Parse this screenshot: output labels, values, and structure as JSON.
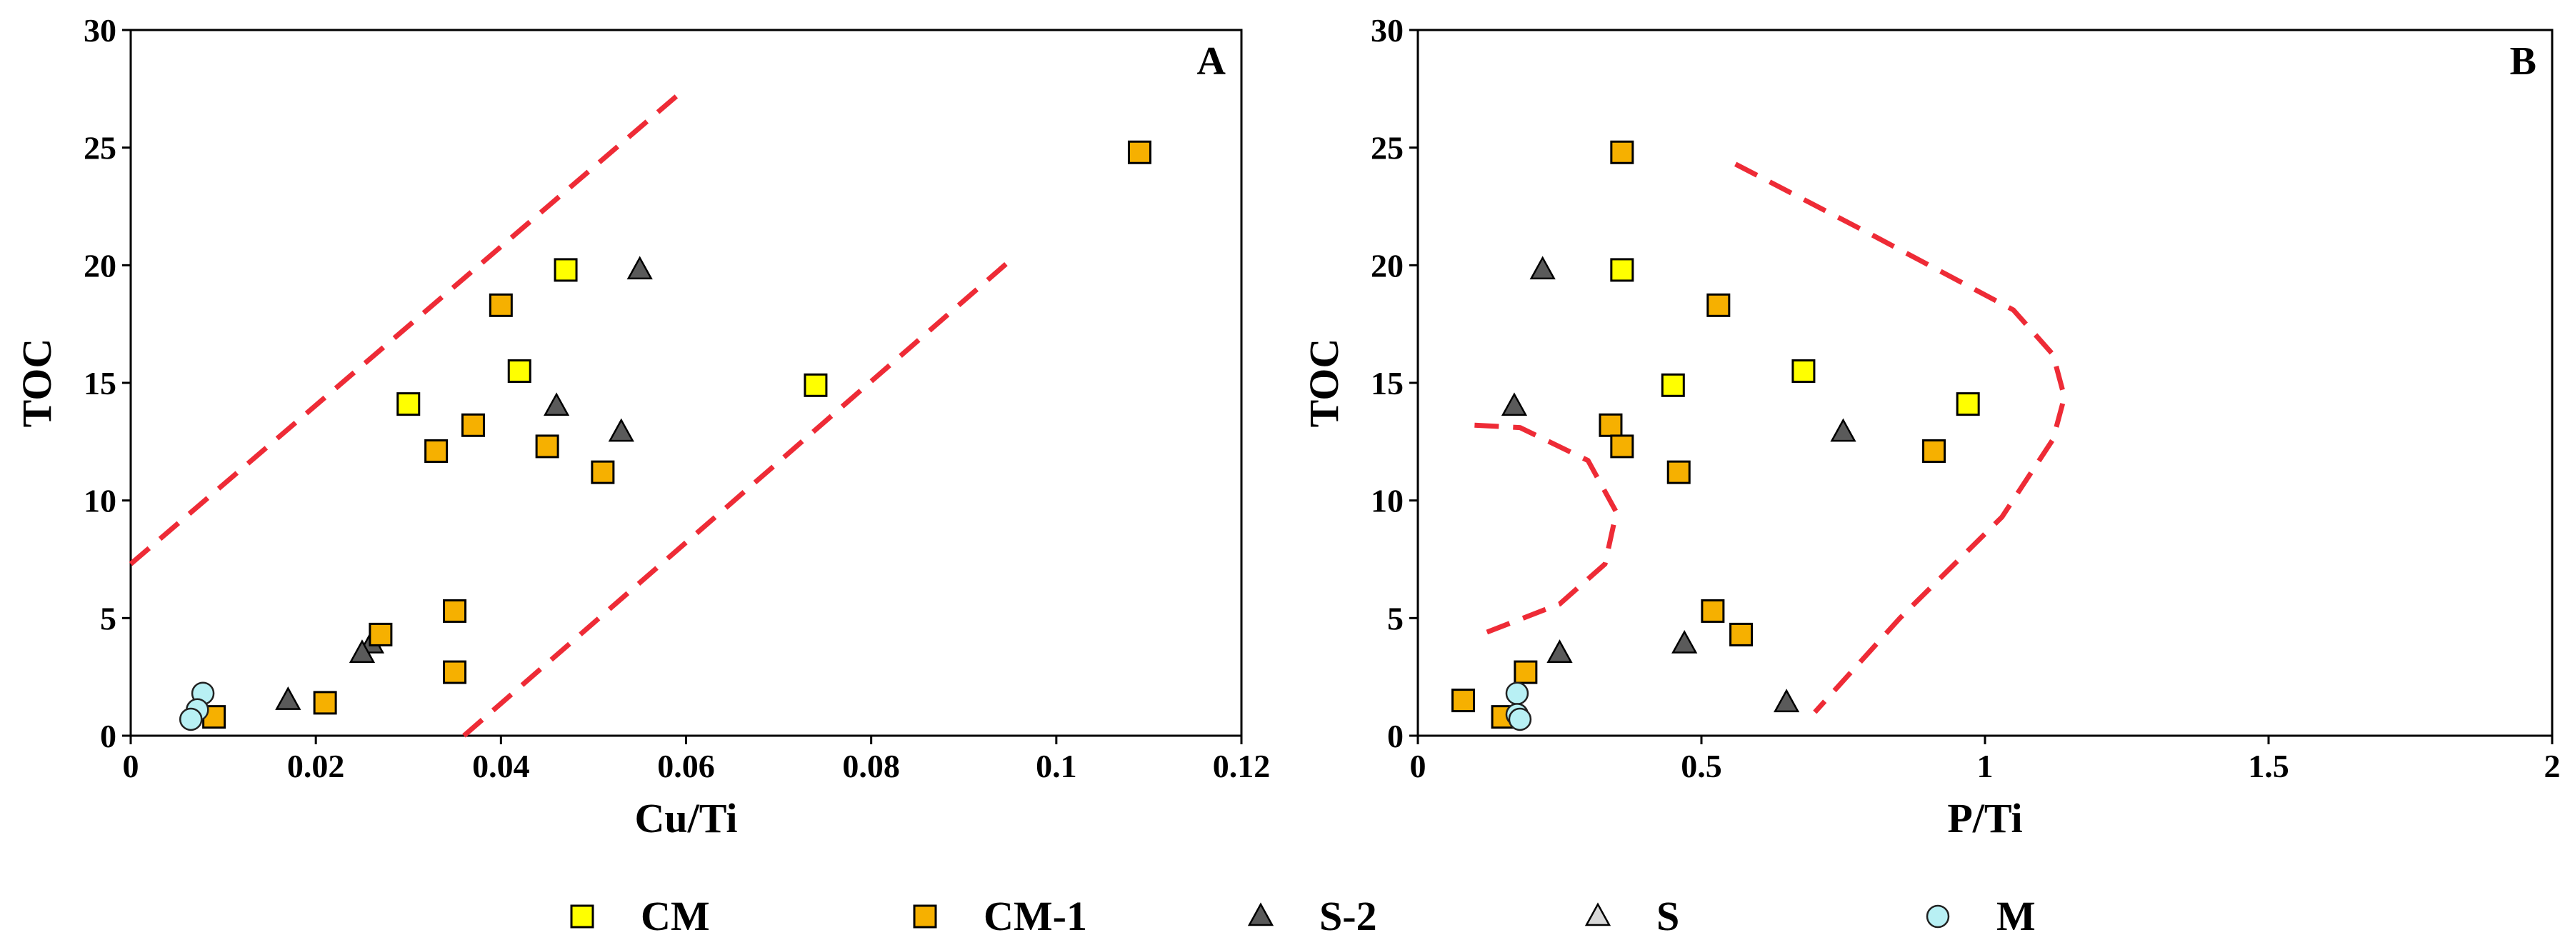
{
  "colors": {
    "CM": "#ffff00",
    "CM-1": "#f6b000",
    "S-2": "#5a5a5a",
    "S": "#d8d8d8",
    "M": "#b8f0f4",
    "boundary": "#ee2b36"
  },
  "legend": [
    {
      "name": "CM",
      "marker": "square"
    },
    {
      "name": "CM-1",
      "marker": "square"
    },
    {
      "name": "S-2",
      "marker": "triangle"
    },
    {
      "name": "S",
      "marker": "triangle"
    },
    {
      "name": "M",
      "marker": "circle"
    }
  ],
  "chart_data": [
    {
      "type": "scatter",
      "panel": "A",
      "xlabel": "Cu/Ti",
      "ylabel": "TOC",
      "xlim": [
        0,
        0.12
      ],
      "ylim": [
        0,
        30
      ],
      "xticks": [
        0,
        0.02,
        0.04,
        0.06,
        0.08,
        0.1,
        0.12
      ],
      "xtick_labels": [
        "0",
        "0.02",
        "0.04",
        "0.06",
        "0.08",
        "0.1",
        "0.12"
      ],
      "yticks": [
        0,
        5,
        10,
        15,
        20,
        25,
        30
      ],
      "ytick_labels": [
        "0",
        "5",
        "10",
        "15",
        "20",
        "25",
        "30"
      ],
      "series": [
        {
          "name": "CM",
          "x": [
            0.047,
            0.042,
            0.03,
            0.074
          ],
          "y": [
            19.8,
            15.5,
            14.1,
            14.9
          ]
        },
        {
          "name": "CM-1",
          "x": [
            0.109,
            0.04,
            0.037,
            0.033,
            0.045,
            0.051,
            0.035,
            0.027,
            0.035,
            0.021,
            0.009
          ],
          "y": [
            24.8,
            18.3,
            13.2,
            12.1,
            12.3,
            11.2,
            5.3,
            4.3,
            2.7,
            1.4,
            0.8
          ]
        },
        {
          "name": "S-2",
          "x": [
            0.055,
            0.046,
            0.053,
            0.026,
            0.025,
            0.017
          ],
          "y": [
            19.8,
            14.0,
            12.9,
            3.9,
            3.5,
            1.5
          ]
        },
        {
          "name": "S",
          "x": [],
          "y": []
        },
        {
          "name": "M",
          "x": [
            0.0078,
            0.0072,
            0.0065
          ],
          "y": [
            1.8,
            1.1,
            0.7
          ]
        }
      ],
      "boundaries": [
        {
          "x": [
            0,
            0.059
          ],
          "y": [
            7.3,
            27.2
          ]
        },
        {
          "x": [
            0.036,
            0.095
          ],
          "y": [
            0,
            20.2
          ]
        }
      ]
    },
    {
      "type": "scatter",
      "panel": "B",
      "xlabel": "P/Ti",
      "ylabel": "TOC",
      "xlim": [
        0,
        2
      ],
      "ylim": [
        0,
        30
      ],
      "xticks": [
        0,
        0.5,
        1,
        1.5,
        2
      ],
      "xtick_labels": [
        "0",
        "0.5",
        "1",
        "1.5",
        "2"
      ],
      "yticks": [
        0,
        5,
        10,
        15,
        20,
        25,
        30
      ],
      "ytick_labels": [
        "0",
        "5",
        "10",
        "15",
        "20",
        "25",
        "30"
      ],
      "series": [
        {
          "name": "CM",
          "x": [
            0.36,
            0.68,
            0.97,
            0.45
          ],
          "y": [
            19.8,
            15.5,
            14.1,
            14.9
          ]
        },
        {
          "name": "CM-1",
          "x": [
            0.36,
            0.53,
            0.34,
            0.36,
            0.46,
            0.91,
            0.52,
            0.57,
            0.19,
            0.08,
            0.15
          ],
          "y": [
            24.8,
            18.3,
            13.2,
            12.3,
            11.2,
            12.1,
            5.3,
            4.3,
            2.7,
            1.5,
            0.8
          ]
        },
        {
          "name": "S-2",
          "x": [
            0.22,
            0.17,
            0.75,
            0.25,
            0.47,
            0.65
          ],
          "y": [
            19.8,
            14.0,
            12.9,
            3.5,
            3.9,
            1.4
          ]
        },
        {
          "name": "S",
          "x": [],
          "y": []
        },
        {
          "name": "M",
          "x": [
            0.175,
            0.175,
            0.18
          ],
          "y": [
            1.8,
            0.9,
            0.7
          ]
        }
      ],
      "boundaries": [
        {
          "x": [
            0.1,
            0.18,
            0.3,
            0.35,
            0.33,
            0.25,
            0.1
          ],
          "y": [
            13.2,
            13.1,
            11.7,
            9.5,
            7.3,
            5.6,
            4.2
          ]
        },
        {
          "x": [
            0.56,
            0.8,
            1.05,
            1.12,
            1.14,
            1.12,
            1.03,
            0.85,
            0.7
          ],
          "y": [
            24.3,
            21.3,
            18.1,
            16.2,
            14.4,
            12.6,
            9.3,
            5.0,
            1.0
          ]
        }
      ]
    }
  ]
}
